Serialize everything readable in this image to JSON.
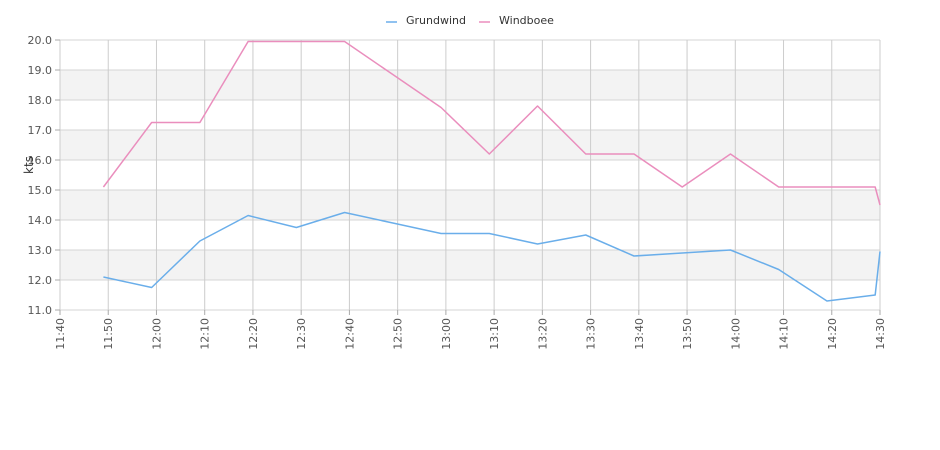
{
  "chart_data": {
    "type": "line",
    "ylabel": "kts",
    "ylim": [
      11.0,
      20.0
    ],
    "y_ticks": [
      "11.0",
      "12.0",
      "13.0",
      "14.0",
      "15.0",
      "16.0",
      "17.0",
      "18.0",
      "19.0",
      "20.0"
    ],
    "x_ticks": [
      "11:40",
      "11:50",
      "12:00",
      "12:10",
      "12:20",
      "12:30",
      "12:40",
      "12:50",
      "13:00",
      "13:10",
      "13:20",
      "13:30",
      "13:40",
      "13:50",
      "14:00",
      "14:10",
      "14:20",
      "14:30"
    ],
    "xlim": [
      "11:40",
      "14:30"
    ],
    "grid": true,
    "legend_position": "top-center",
    "series": [
      {
        "name": "Grundwind",
        "color": "#6aaeea",
        "points": [
          [
            "11:49",
            12.1
          ],
          [
            "11:59",
            11.75
          ],
          [
            "12:09",
            13.3
          ],
          [
            "12:19",
            14.15
          ],
          [
            "12:29",
            13.75
          ],
          [
            "12:39",
            14.25
          ],
          [
            "12:49",
            13.9
          ],
          [
            "12:59",
            13.55
          ],
          [
            "13:09",
            13.55
          ],
          [
            "13:19",
            13.2
          ],
          [
            "13:29",
            13.5
          ],
          [
            "13:39",
            12.8
          ],
          [
            "13:49",
            12.9
          ],
          [
            "13:59",
            13.0
          ],
          [
            "14:09",
            12.35
          ],
          [
            "14:19",
            11.3
          ],
          [
            "14:29",
            11.5
          ],
          [
            "14:30",
            12.95
          ]
        ]
      },
      {
        "name": "Windboee",
        "color": "#ea8ebd",
        "points": [
          [
            "11:49",
            15.1
          ],
          [
            "11:59",
            17.25
          ],
          [
            "12:09",
            17.25
          ],
          [
            "12:19",
            19.95
          ],
          [
            "12:29",
            19.95
          ],
          [
            "12:39",
            19.95
          ],
          [
            "12:49",
            18.85
          ],
          [
            "12:59",
            17.75
          ],
          [
            "13:09",
            16.2
          ],
          [
            "13:19",
            17.8
          ],
          [
            "13:29",
            16.2
          ],
          [
            "13:39",
            16.2
          ],
          [
            "13:49",
            15.1
          ],
          [
            "13:59",
            16.2
          ],
          [
            "14:09",
            15.1
          ],
          [
            "14:19",
            15.1
          ],
          [
            "14:29",
            15.1
          ],
          [
            "14:30",
            14.5
          ]
        ]
      }
    ]
  }
}
